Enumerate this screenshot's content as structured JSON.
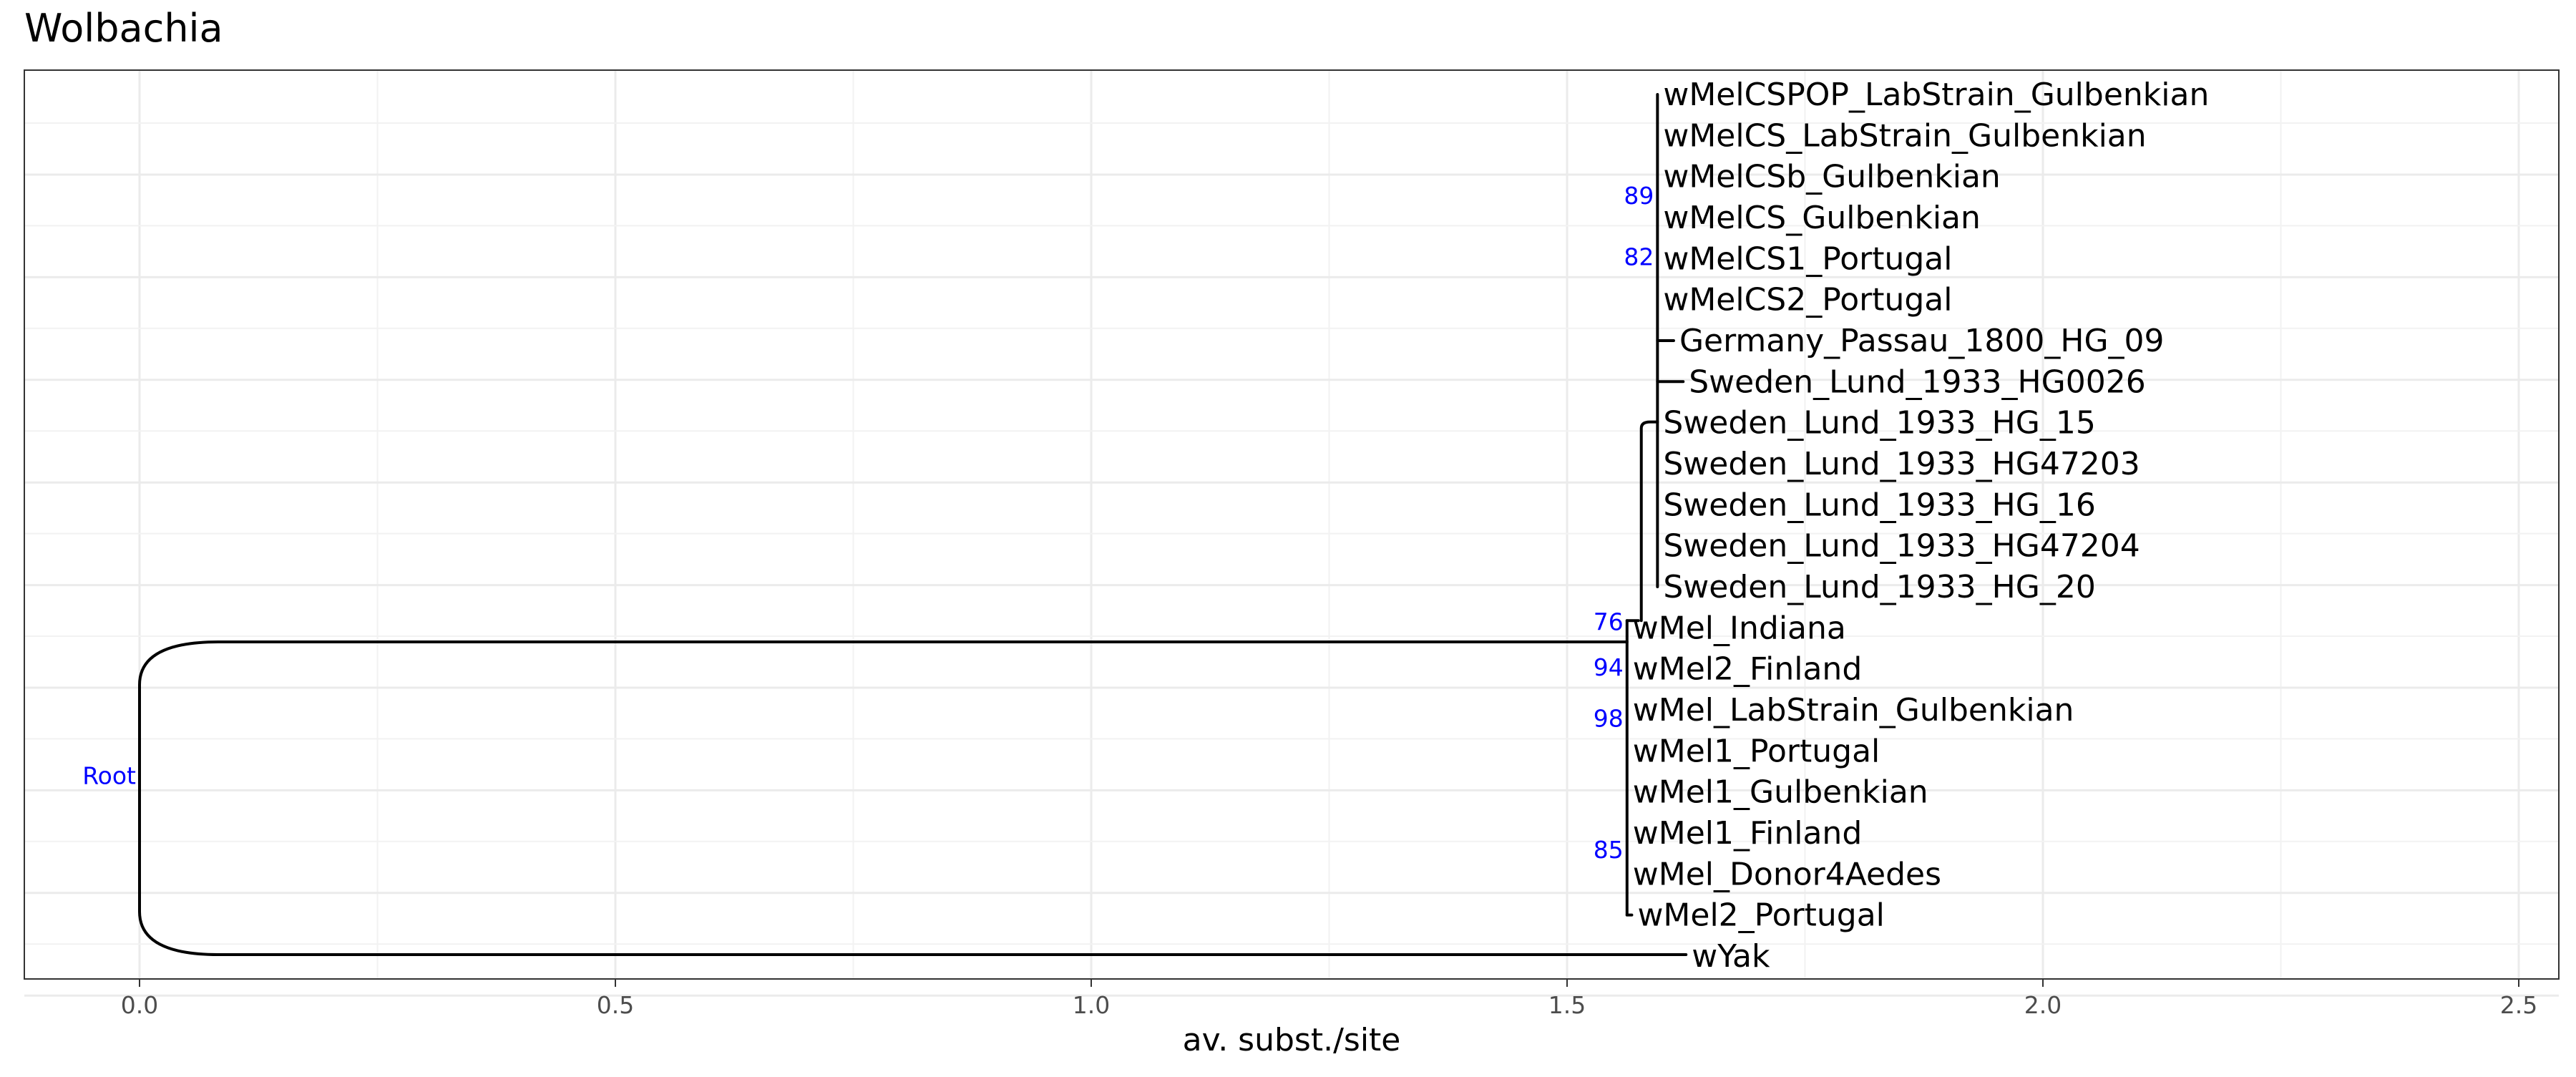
{
  "chart_data": {
    "type": "tree",
    "title": "Wolbachia",
    "xlabel": "av. subst./site",
    "xlim": [
      -0.12,
      2.55
    ],
    "x_ticks": [
      0.0,
      0.5,
      1.0,
      1.5,
      2.0,
      2.5
    ],
    "x_tick_labels": [
      "0.0",
      "0.5",
      "1.0",
      "1.5",
      "2.0",
      "2.5"
    ],
    "grid": true,
    "branch_color": "#000000",
    "support_color": "#0000ff",
    "tips": [
      {
        "name": "wMelCSPOP_LabStrain_Gulbenkian",
        "x": 1.595
      },
      {
        "name": "wMelCS_LabStrain_Gulbenkian",
        "x": 1.595
      },
      {
        "name": "wMelCSb_Gulbenkian",
        "x": 1.595
      },
      {
        "name": "wMelCS_Gulbenkian",
        "x": 1.595
      },
      {
        "name": "wMelCS1_Portugal",
        "x": 1.595
      },
      {
        "name": "wMelCS2_Portugal",
        "x": 1.595
      },
      {
        "name": "Germany_Passau_1800_HG_09",
        "x": 1.612
      },
      {
        "name": "Sweden_Lund_1933_HG0026",
        "x": 1.622
      },
      {
        "name": "Sweden_Lund_1933_HG_15",
        "x": 1.595
      },
      {
        "name": "Sweden_Lund_1933_HG47203",
        "x": 1.595
      },
      {
        "name": "Sweden_Lund_1933_HG_16",
        "x": 1.595
      },
      {
        "name": "Sweden_Lund_1933_HG47204",
        "x": 1.595
      },
      {
        "name": "Sweden_Lund_1933_HG_20",
        "x": 1.595
      },
      {
        "name": "wMel_Indiana",
        "x": 1.563
      },
      {
        "name": "wMel2_Finland",
        "x": 1.563
      },
      {
        "name": "wMel_LabStrain_Gulbenkian",
        "x": 1.563
      },
      {
        "name": "wMel1_Portugal",
        "x": 1.563
      },
      {
        "name": "wMel1_Gulbenkian",
        "x": 1.563
      },
      {
        "name": "wMel1_Finland",
        "x": 1.563
      },
      {
        "name": "wMel_Donor4Aedes",
        "x": 1.563
      },
      {
        "name": "wMel2_Portugal",
        "x": 1.568
      },
      {
        "name": "wYak",
        "x": 1.625
      }
    ],
    "node_labels": [
      {
        "label": "Root",
        "x": 0.0,
        "y_tip": 16.6
      },
      {
        "label": "89",
        "x": 1.595,
        "y_tip": 2.46
      },
      {
        "label": "82",
        "x": 1.595,
        "y_tip": 3.95
      },
      {
        "label": "76",
        "x": 1.563,
        "y_tip": 12.85
      },
      {
        "label": "94",
        "x": 1.563,
        "y_tip": 13.95
      },
      {
        "label": "98",
        "x": 1.563,
        "y_tip": 15.2
      },
      {
        "label": "85",
        "x": 1.563,
        "y_tip": 18.4
      }
    ]
  }
}
